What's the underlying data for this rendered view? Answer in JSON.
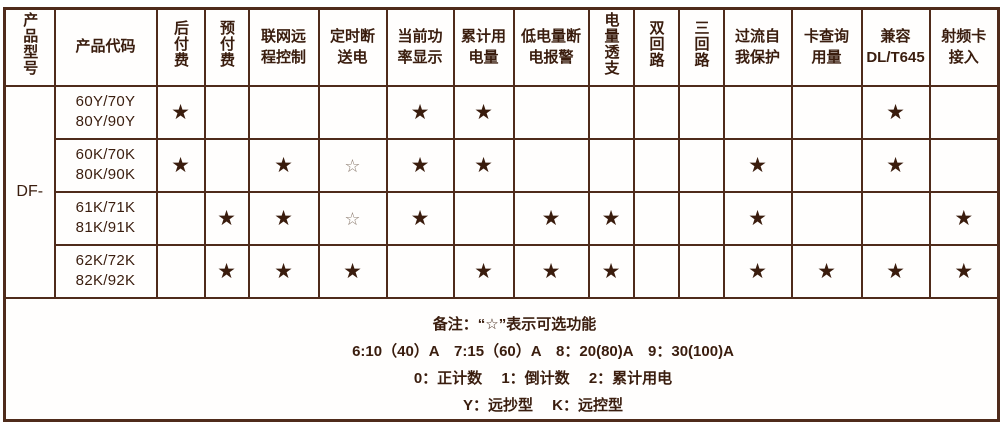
{
  "colors": {
    "border": "#4f2b1b",
    "text": "#3a1d0e",
    "star_filled": "#3a1c0d",
    "star_hollow_outline": "#8d7d71",
    "background": "#ffffff"
  },
  "table": {
    "model_header": "产品型号",
    "code_header": "产品代码",
    "model_value": "DF-",
    "feature_headers": [
      {
        "text": "后付费"
      },
      {
        "text": "预付费"
      },
      {
        "lines": [
          "联网远",
          "程控制"
        ]
      },
      {
        "lines": [
          "定时断",
          "送电"
        ]
      },
      {
        "lines": [
          "当前功",
          "率显示"
        ]
      },
      {
        "lines": [
          "累计用",
          "电量"
        ]
      },
      {
        "lines": [
          "低电量断",
          "电报警"
        ]
      },
      {
        "text": "电量透支"
      },
      {
        "text": "双回路"
      },
      {
        "text": "三回路"
      },
      {
        "lines": [
          "过流自",
          "我保护"
        ]
      },
      {
        "lines": [
          "卡查询",
          "用量"
        ]
      },
      {
        "lines": [
          "兼容",
          "DL/T645"
        ]
      },
      {
        "lines": [
          "射频卡",
          "接入"
        ]
      }
    ],
    "rows": [
      {
        "code_lines": [
          "60Y/70Y",
          "80Y/90Y"
        ],
        "marks": [
          "★",
          "",
          "",
          "",
          "★",
          "★",
          "",
          "",
          "",
          "",
          "",
          "",
          "★",
          ""
        ]
      },
      {
        "code_lines": [
          "60K/70K",
          "80K/90K"
        ],
        "marks": [
          "★",
          "",
          "★",
          "☆",
          "★",
          "★",
          "",
          "",
          "",
          "",
          "★",
          "",
          "★",
          ""
        ]
      },
      {
        "code_lines": [
          "61K/71K",
          "81K/91K"
        ],
        "marks": [
          "",
          "★",
          "★",
          "☆",
          "★",
          "",
          "★",
          "★",
          "",
          "",
          "★",
          "",
          "",
          "★"
        ]
      },
      {
        "code_lines": [
          "62K/72K",
          "82K/92K"
        ],
        "marks": [
          "",
          "★",
          "★",
          "★",
          "",
          "★",
          "★",
          "★",
          "",
          "",
          "★",
          "★",
          "★",
          "★"
        ]
      }
    ]
  },
  "footer": {
    "label": "备注：",
    "line1": "“☆”表示可选功能",
    "line2": "6:10（40）A　7:15（60）A　8：20(80)A　9：30(100)A",
    "line3": "0：正计数　 1：倒计数　 2：累计用电",
    "line4": "Y：远抄型　 K：远控型"
  }
}
